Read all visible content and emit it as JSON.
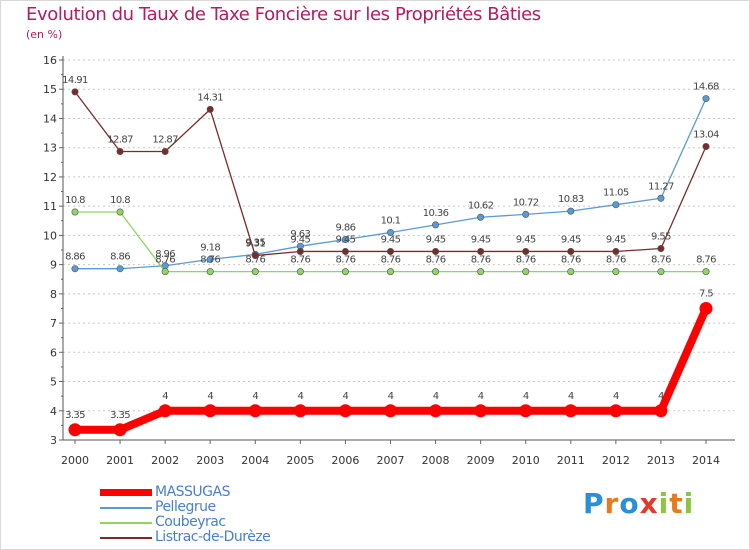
{
  "title": "Evolution du Taux de Taxe Foncière sur les Propriétés Bâties",
  "subtitle": "(en %)",
  "brand": {
    "letters": [
      "P",
      "r",
      "o",
      "x",
      "i",
      "t",
      "i"
    ],
    "colors": [
      "#2a8fd6",
      "#e87a1c",
      "#2a8fd6",
      "#e23a2a",
      "#8cc63f",
      "#e87a1c",
      "#8cc63f"
    ]
  },
  "chart_data": {
    "type": "line",
    "title": "Evolution du Taux de Taxe Foncière sur les Propriétés Bâties",
    "ylabel": "(en %)",
    "xlabel": "",
    "x": [
      "2000",
      "2001",
      "2002",
      "2003",
      "2004",
      "2005",
      "2006",
      "2007",
      "2008",
      "2009",
      "2010",
      "2011",
      "2012",
      "2013",
      "2014"
    ],
    "ylim": [
      3,
      16
    ],
    "yticks": [
      "3",
      "4",
      "5",
      "6",
      "7",
      "8",
      "9",
      "10",
      "11",
      "12",
      "13",
      "14",
      "15",
      "16"
    ],
    "grid": "horizontal dashed",
    "legend_position": "bottom-left",
    "series": [
      {
        "name": "MASSUGAS",
        "color": "#ff0000",
        "values": [
          3.35,
          3.35,
          4,
          4,
          4,
          4,
          4,
          4,
          4,
          4,
          4,
          4,
          4,
          4,
          7.5
        ],
        "labels": [
          "3.35",
          "3.35",
          "4",
          "4",
          "4",
          "4",
          "4",
          "4",
          "4",
          "4",
          "4",
          "4",
          "4",
          "4",
          "7.5"
        ]
      },
      {
        "name": "Pellegrue",
        "color": "#5a9bd5",
        "values": [
          8.86,
          8.86,
          8.96,
          9.18,
          9.35,
          9.63,
          9.86,
          10.1,
          10.36,
          10.62,
          10.72,
          10.83,
          11.05,
          11.27,
          14.68
        ],
        "labels": [
          "8.86",
          "8.86",
          "8.96",
          "9.18",
          "9.35",
          "9.63",
          "9.86",
          "10.1",
          "10.36",
          "10.62",
          "10.72",
          "10.83",
          "11.05",
          "11.27",
          "14.68"
        ]
      },
      {
        "name": "Coubeyrac",
        "color": "#8ed65f",
        "values": [
          10.8,
          10.8,
          8.76,
          8.76,
          8.76,
          8.76,
          8.76,
          8.76,
          8.76,
          8.76,
          8.76,
          8.76,
          8.76,
          8.76,
          8.76
        ],
        "labels": [
          "10.8",
          "10.8",
          "8.76",
          "8.76",
          "8.76",
          "8.76",
          "8.76",
          "8.76",
          "8.76",
          "8.76",
          "8.76",
          "8.76",
          "8.76",
          "8.76",
          "8.76"
        ]
      },
      {
        "name": "Listrac-de-Durèze",
        "color": "#7b2b2b",
        "values": [
          14.91,
          12.87,
          12.87,
          14.31,
          9.31,
          9.45,
          9.45,
          9.45,
          9.45,
          9.45,
          9.45,
          9.45,
          9.45,
          9.55,
          13.04
        ],
        "labels": [
          "14.91",
          "12.87",
          "12.87",
          "14.31",
          "9.31",
          "9.45",
          "9.45",
          "9.45",
          "9.45",
          "9.45",
          "9.45",
          "9.45",
          "9.45",
          "9.55",
          "13.04"
        ]
      }
    ]
  }
}
